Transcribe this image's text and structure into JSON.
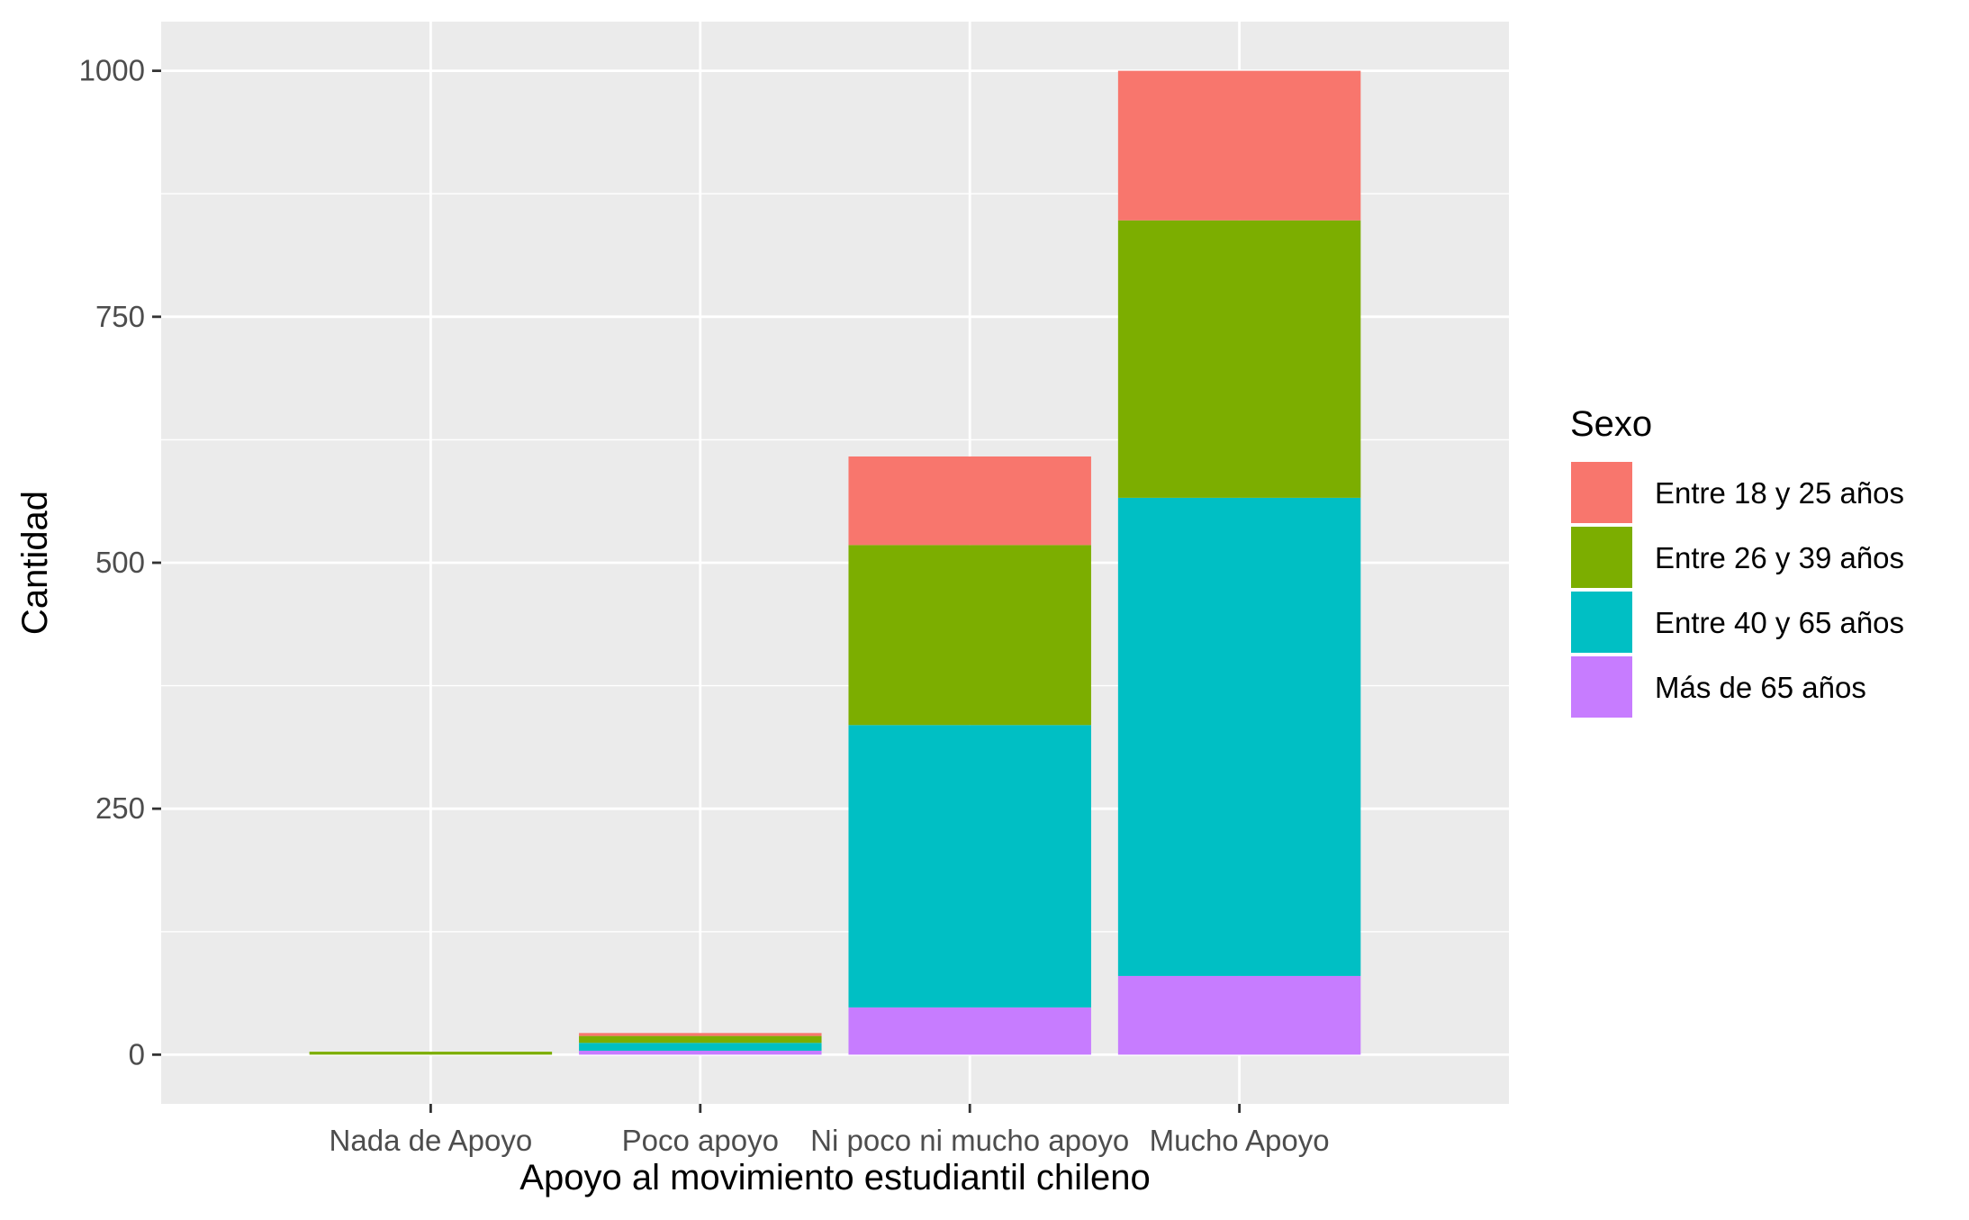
{
  "chart_data": {
    "type": "bar",
    "stacked": true,
    "xlabel": "Apoyo al movimiento estudiantil chileno",
    "ylabel": "Cantidad",
    "categories": [
      "Nada de Apoyo",
      "Poco apoyo",
      "Ni poco ni mucho apoyo",
      "Mucho Apoyo"
    ],
    "ylim": [
      -50,
      1050
    ],
    "yticks": [
      0,
      250,
      500,
      750,
      1000
    ],
    "ytick_labels": [
      "0",
      "250",
      "500",
      "750",
      "1000"
    ],
    "grid": true,
    "legend": {
      "title": "Sexo",
      "position": "right"
    },
    "series": [
      {
        "name": "Más de 65 años",
        "color": "#C77CFF",
        "values": [
          0,
          4,
          48,
          80
        ]
      },
      {
        "name": "Entre 40 y 65 años",
        "color": "#00BFC4",
        "values": [
          0,
          8,
          287,
          486
        ]
      },
      {
        "name": "Entre 26 y 39 años",
        "color": "#7CAE00",
        "values": [
          3,
          7,
          183,
          282
        ]
      },
      {
        "name": "Entre 18 y 25 años",
        "color": "#F8766D",
        "values": [
          0,
          3,
          90,
          152
        ]
      }
    ],
    "legend_order": [
      "Entre 18 y 25 años",
      "Entre 26 y 39 años",
      "Entre 40 y 65 años",
      "Más de 65 años"
    ]
  },
  "style": {
    "panel_background": "#EBEBEB",
    "grid_color": "#FFFFFF",
    "tick_color": "#333333"
  }
}
